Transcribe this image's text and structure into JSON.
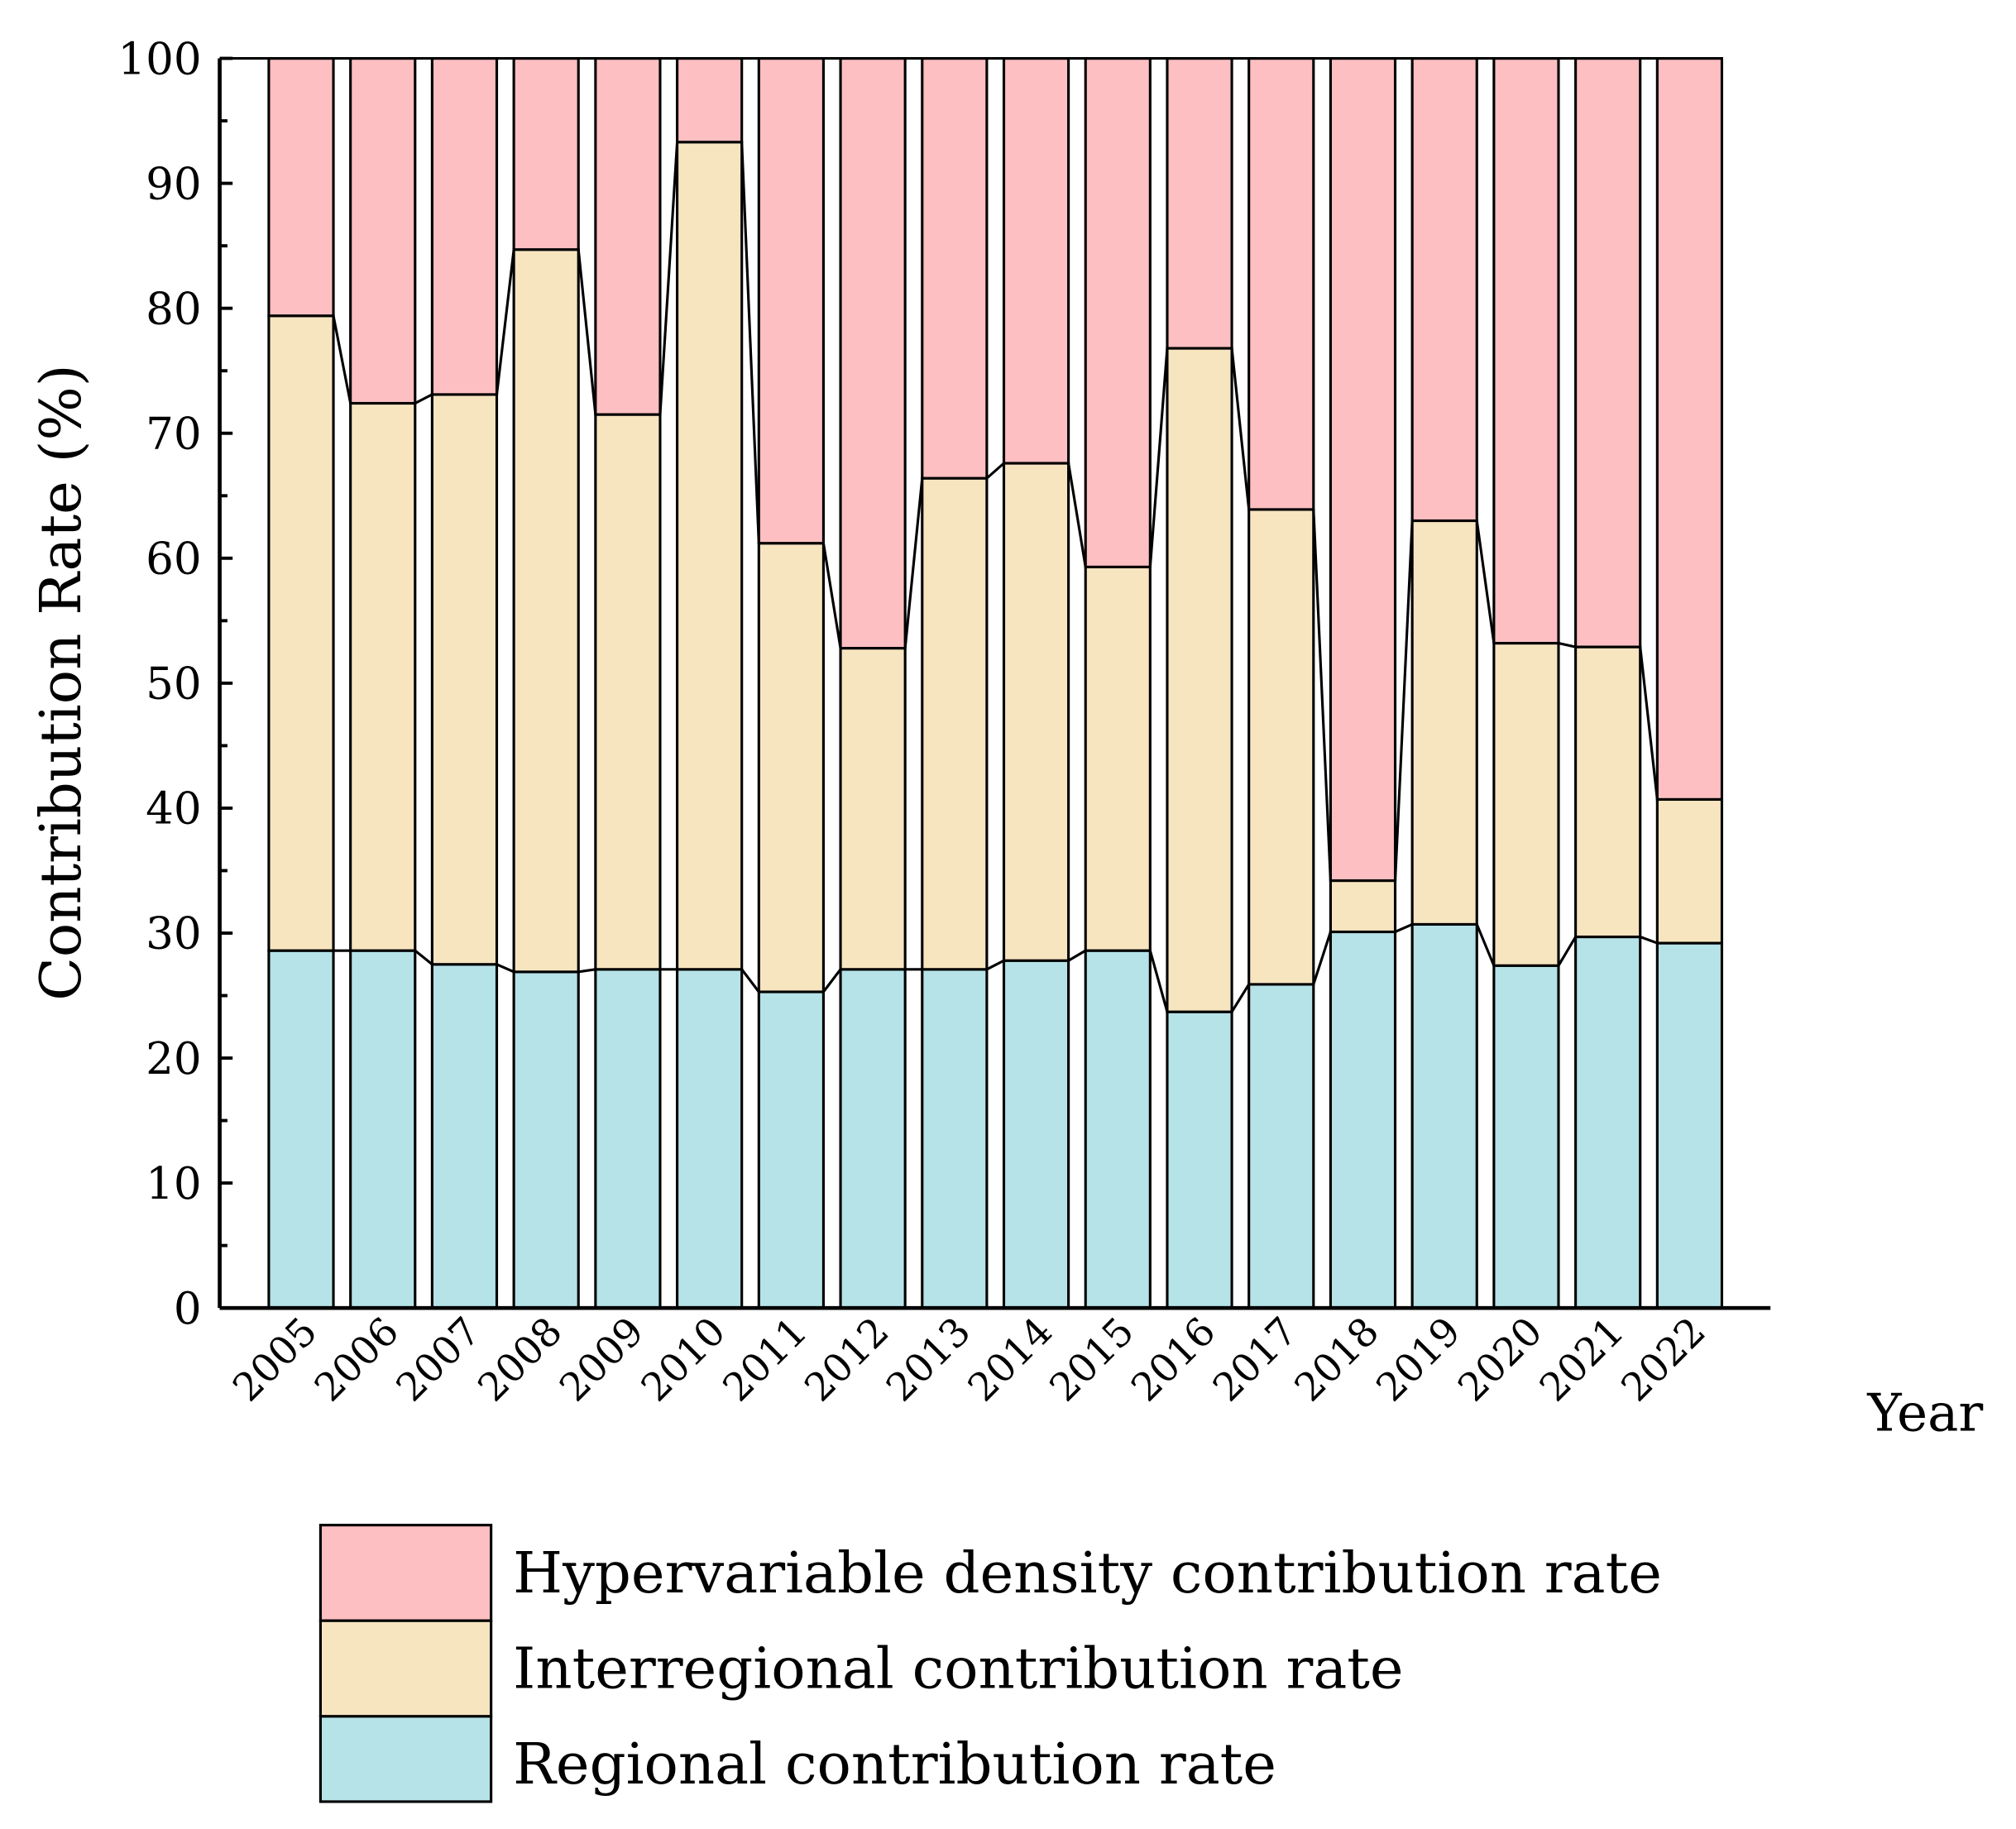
{
  "chart_data": {
    "type": "bar",
    "stacked": true,
    "title": "",
    "xlabel": "Year",
    "ylabel": "Contribution Rate (%)",
    "ylim": [
      0,
      100
    ],
    "yticks": [
      0,
      10,
      20,
      30,
      40,
      50,
      60,
      70,
      80,
      90,
      100
    ],
    "legend_position": "bottom",
    "categories": [
      "2005",
      "2006",
      "2007",
      "2008",
      "2009",
      "2010",
      "2011",
      "2012",
      "2013",
      "2014",
      "2015",
      "2016",
      "2017",
      "2018",
      "2019",
      "2020",
      "2021",
      "2022"
    ],
    "series": [
      {
        "name": "Regional contribution rate",
        "color": "#B5E3E8",
        "values": [
          28.6,
          28.6,
          27.5,
          26.9,
          27.1,
          27.1,
          25.3,
          27.1,
          27.1,
          27.8,
          28.6,
          23.7,
          25.9,
          30.1,
          30.7,
          27.4,
          29.7,
          29.2
        ]
      },
      {
        "name": "Interregional contribution rate",
        "color": "#F7E5C0",
        "values": [
          50.8,
          43.8,
          45.6,
          57.8,
          44.4,
          66.2,
          35.9,
          25.7,
          39.3,
          39.8,
          30.7,
          53.1,
          38.0,
          4.1,
          32.3,
          25.8,
          23.2,
          11.5
        ]
      },
      {
        "name": "Hypervariable density contribution rate",
        "color": "#FDBFC1",
        "values": [
          20.6,
          27.6,
          26.9,
          15.3,
          28.5,
          6.7,
          38.8,
          47.2,
          33.6,
          32.4,
          40.7,
          23.2,
          36.1,
          65.8,
          37.0,
          46.8,
          47.1,
          59.3
        ]
      }
    ]
  }
}
